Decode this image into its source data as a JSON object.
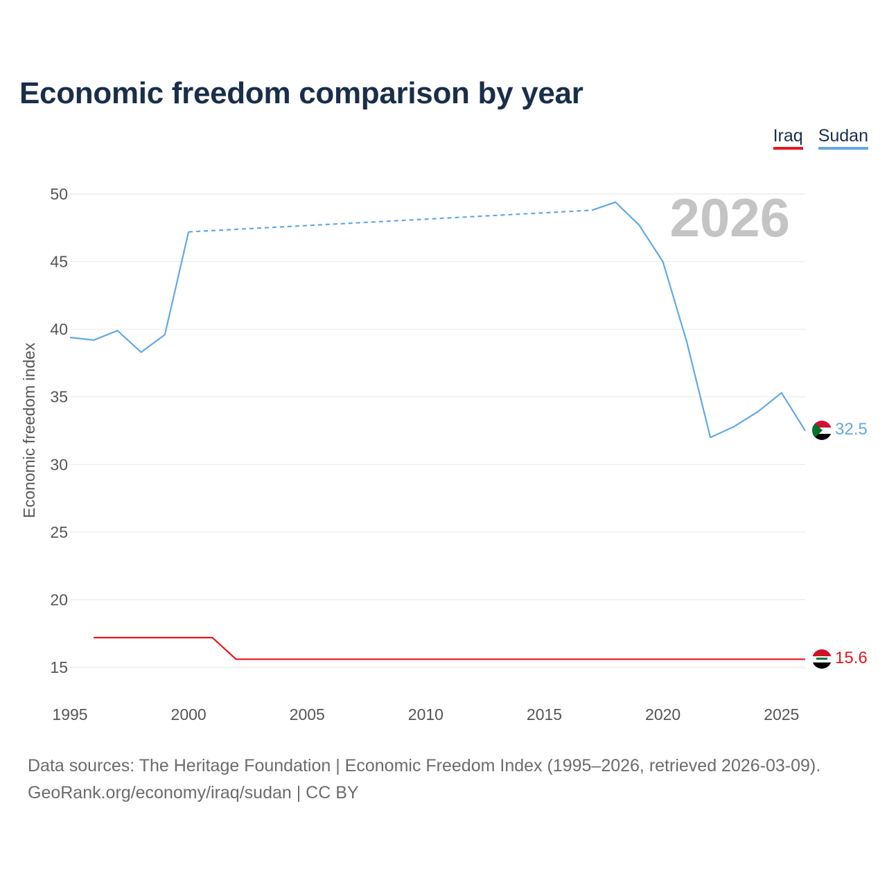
{
  "colors": {
    "iraq": "#e8141c",
    "sudan": "#62a8e6",
    "grid": "#e6e6e6",
    "title": "#1a2e4a"
  },
  "legend": {
    "iraq_label": "Iraq",
    "sudan_label": "Sudan"
  },
  "footer": {
    "line1": "Data sources: The Heritage Foundation | Economic Freedom Index (1995–2026, retrieved 2026-03-09).",
    "line2": "GeoRank.org/economy/iraq/sudan | CC BY"
  },
  "chart_data": {
    "type": "line",
    "title": "Economic freedom comparison by year",
    "ylabel": "Economic freedom index",
    "xlabel": "",
    "watermark_year": "2026",
    "xlim": [
      1995,
      2026
    ],
    "ylim": [
      15,
      50
    ],
    "x_ticks": [
      1995,
      2000,
      2005,
      2010,
      2015,
      2020,
      2025
    ],
    "y_ticks": [
      15,
      20,
      25,
      30,
      35,
      40,
      45,
      50
    ],
    "series": [
      {
        "name": "Iraq",
        "key": "iraq",
        "end_label": "15.6",
        "points": [
          [
            1996,
            17.2
          ],
          [
            2001,
            17.2
          ],
          [
            2002,
            15.6
          ],
          [
            2026,
            15.6
          ]
        ],
        "gaps": []
      },
      {
        "name": "Sudan",
        "key": "sudan",
        "end_label": "32.5",
        "points": [
          [
            1995,
            39.4
          ],
          [
            1996,
            39.2
          ],
          [
            1997,
            39.9
          ],
          [
            1998,
            38.3
          ],
          [
            1999,
            39.6
          ],
          [
            2000,
            47.2
          ],
          [
            2017,
            48.8
          ],
          [
            2018,
            49.4
          ],
          [
            2019,
            47.7
          ],
          [
            2020,
            45.0
          ],
          [
            2021,
            39.1
          ],
          [
            2022,
            32.0
          ],
          [
            2023,
            32.8
          ],
          [
            2024,
            33.9
          ],
          [
            2025,
            35.3
          ],
          [
            2026,
            32.5
          ]
        ],
        "gaps": [
          [
            2000,
            2017
          ]
        ]
      }
    ]
  }
}
